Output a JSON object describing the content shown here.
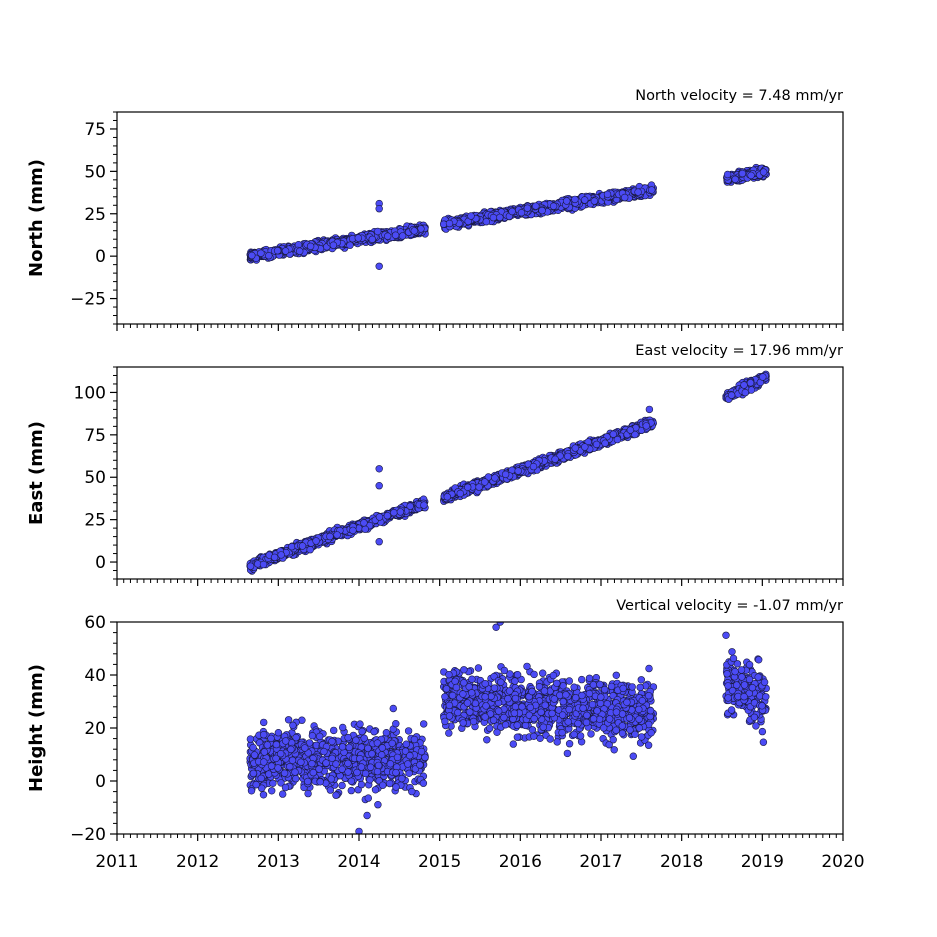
{
  "chart_data": [
    {
      "type": "scatter",
      "title": "North velocity = 7.48 mm/yr",
      "ylabel": "North (mm)",
      "xlim": [
        2011,
        2020
      ],
      "ylim": [
        -40,
        85
      ],
      "yticks": [
        -25,
        0,
        25,
        50,
        75
      ],
      "ytick_labels": [
        "−25",
        "0",
        "25",
        "50",
        "75"
      ],
      "marker_color": "#4b4bf5",
      "segments": [
        {
          "x_start": 2012.65,
          "x_end": 2014.82,
          "y_start": 0,
          "y_end": 16
        },
        {
          "x_start": 2015.05,
          "x_end": 2017.65,
          "y_start": 19,
          "y_end": 39
        },
        {
          "x_start": 2018.55,
          "x_end": 2019.05,
          "y_start": 46,
          "y_end": 50
        }
      ],
      "outliers": [
        {
          "x": 2014.25,
          "y": 31
        },
        {
          "x": 2014.25,
          "y": 28
        },
        {
          "x": 2014.25,
          "y": -6
        }
      ]
    },
    {
      "type": "scatter",
      "title": "East velocity = 17.96 mm/yr",
      "ylabel": "East (mm)",
      "xlim": [
        2011,
        2020
      ],
      "ylim": [
        -10,
        115
      ],
      "yticks": [
        0,
        25,
        50,
        75,
        100
      ],
      "ytick_labels": [
        "0",
        "25",
        "50",
        "75",
        "100"
      ],
      "marker_color": "#4b4bf5",
      "segments": [
        {
          "x_start": 2012.65,
          "x_end": 2014.82,
          "y_start": -2,
          "y_end": 35
        },
        {
          "x_start": 2015.05,
          "x_end": 2017.65,
          "y_start": 38,
          "y_end": 82
        },
        {
          "x_start": 2018.55,
          "x_end": 2019.05,
          "y_start": 97,
          "y_end": 109
        }
      ],
      "outliers": [
        {
          "x": 2014.25,
          "y": 55
        },
        {
          "x": 2014.25,
          "y": 45
        },
        {
          "x": 2014.25,
          "y": 12
        },
        {
          "x": 2017.6,
          "y": 90
        }
      ]
    },
    {
      "type": "scatter",
      "title": "Vertical velocity = -1.07 mm/yr",
      "ylabel": "Height (mm)",
      "xlim": [
        2011,
        2020
      ],
      "ylim": [
        -20,
        60
      ],
      "yticks": [
        -20,
        0,
        20,
        40,
        60
      ],
      "ytick_labels": [
        "−20",
        "0",
        "20",
        "40",
        "60"
      ],
      "xticks": [
        2011,
        2012,
        2013,
        2014,
        2015,
        2016,
        2017,
        2018,
        2019,
        2020
      ],
      "xtick_labels": [
        "2011",
        "2012",
        "2013",
        "2014",
        "2015",
        "2016",
        "2017",
        "2018",
        "2019",
        "2020"
      ],
      "marker_color": "#4b4bf5",
      "segments": [
        {
          "x_start": 2012.65,
          "x_end": 2014.82,
          "y_start": 8,
          "y_end": 8
        },
        {
          "x_start": 2015.05,
          "x_end": 2017.65,
          "y_start": 31,
          "y_end": 26
        },
        {
          "x_start": 2018.55,
          "x_end": 2019.05,
          "y_start": 37,
          "y_end": 30
        }
      ],
      "outliers": [
        {
          "x": 2015.7,
          "y": 58
        },
        {
          "x": 2015.75,
          "y": 60
        },
        {
          "x": 2014.0,
          "y": -19
        },
        {
          "x": 2018.55,
          "y": 55
        },
        {
          "x": 2014.1,
          "y": -13
        }
      ]
    }
  ]
}
